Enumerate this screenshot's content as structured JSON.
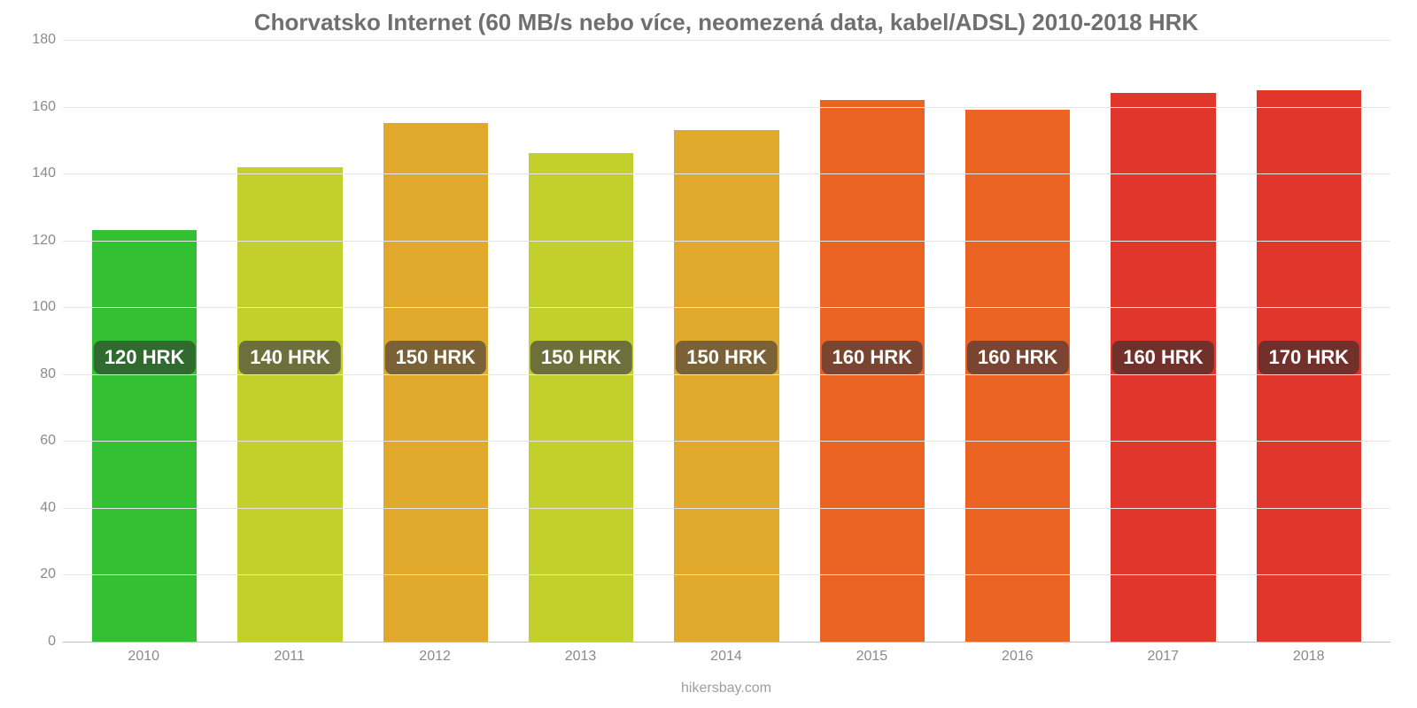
{
  "chart": {
    "type": "bar",
    "title": "Chorvatsko Internet (60 MB/s nebo více, neomezená data, kabel/ADSL) 2010-2018 HRK",
    "title_color": "#6f6f6f",
    "title_fontsize": 26,
    "footer": "hikersbay.com",
    "footer_color": "#9e9e9e",
    "footer_fontsize": 16,
    "background_color": "#ffffff",
    "grid_color": "#e6e6e6",
    "baseline_color": "#bdbdbd",
    "axis_label_color": "#8a8a8a",
    "axis_label_fontsize": 16,
    "ylim_min": 0,
    "ylim_max": 180,
    "ytick_step": 20,
    "yticks": [
      0,
      20,
      40,
      60,
      80,
      100,
      120,
      140,
      160,
      180
    ],
    "bar_width_pct": 72,
    "bar_label_fontsize": 22,
    "bar_label_text_color": "#ffffff",
    "bar_label_bg_opacity": 0.35,
    "bar_label_bg_color_base": "#000000",
    "bar_label_offset_value": 85,
    "categories": [
      "2010",
      "2011",
      "2012",
      "2013",
      "2014",
      "2015",
      "2016",
      "2017",
      "2018"
    ],
    "values": [
      123,
      142,
      155,
      146,
      153,
      162,
      159,
      164,
      165
    ],
    "value_labels": [
      "120 HRK",
      "140 HRK",
      "150 HRK",
      "150 HRK",
      "150 HRK",
      "160 HRK",
      "160 HRK",
      "160 HRK",
      "170 HRK"
    ],
    "bar_colors": [
      "#33c133",
      "#c3cf2b",
      "#e0a92c",
      "#c3cf2b",
      "#e0a92c",
      "#eb6423",
      "#eb6423",
      "#e1362b",
      "#e1362b"
    ],
    "bar_label_bg_colors": [
      "#2f6b2f",
      "#6d703a",
      "#7a6236",
      "#6d703a",
      "#7a6236",
      "#7a4431",
      "#7a4431",
      "#72302b",
      "#72302b"
    ]
  }
}
